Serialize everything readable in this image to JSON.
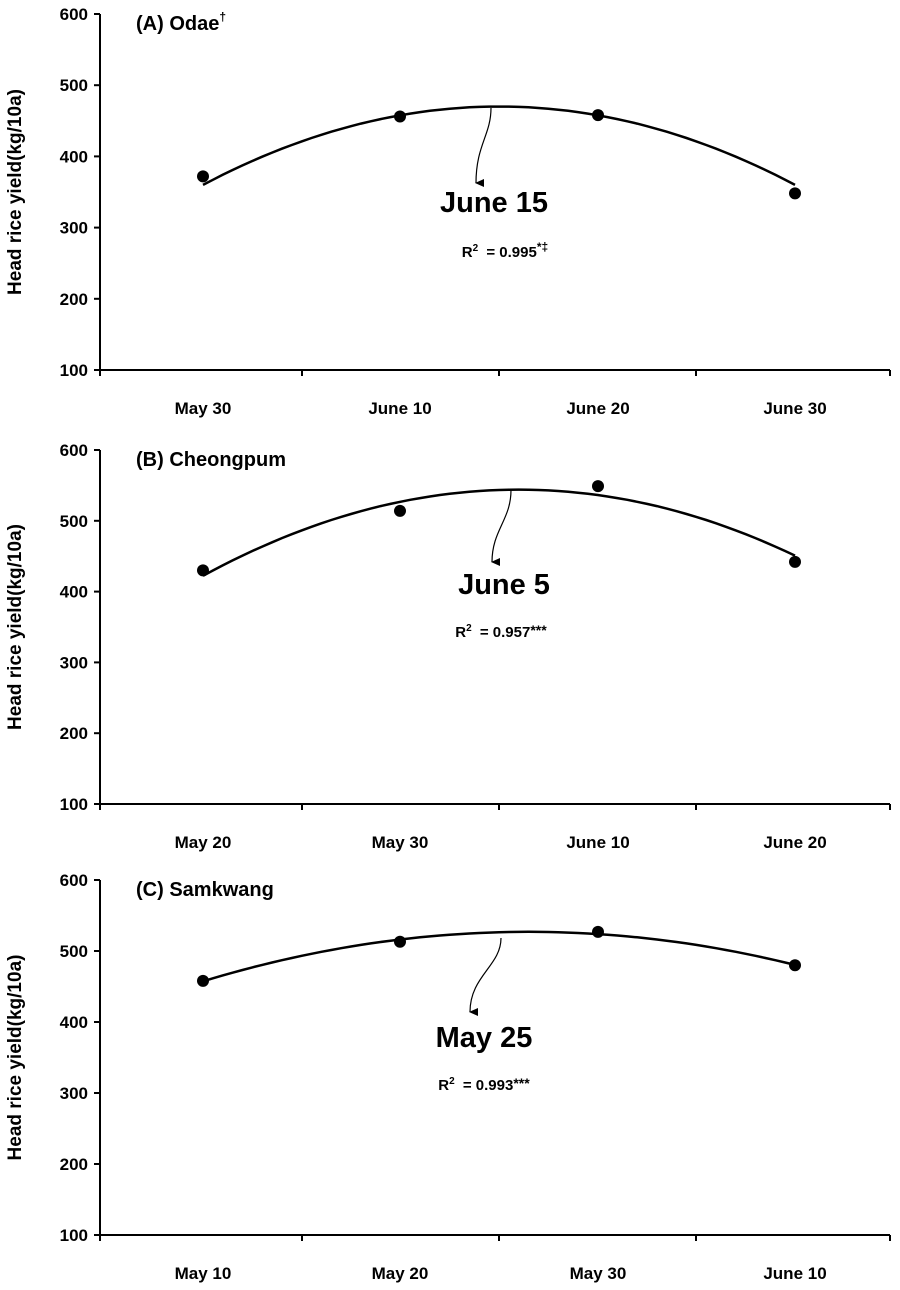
{
  "chart_data": [
    {
      "type": "scatter",
      "title": "(A) Odae",
      "title_mark": "†",
      "ylabel": "Head rice yield(kg/10a)",
      "ylim": [
        100,
        600
      ],
      "yticks": [
        "100",
        "200",
        "300",
        "400",
        "500",
        "600"
      ],
      "categories": [
        "May 30",
        "June 10",
        "June 20",
        "June 30"
      ],
      "series": [
        {
          "values": [
            372,
            456,
            458,
            348
          ]
        }
      ],
      "fit": {
        "type": "quadratic",
        "peak_x": 1.5,
        "peak_y": 470
      },
      "optimum_label": "June 15",
      "r2_text": "= 0.995",
      "r2_sig": "*‡",
      "grid": false
    },
    {
      "type": "scatter",
      "title": "(B) Cheongpum",
      "title_mark": "",
      "ylabel": "Head rice yield(kg/10a)",
      "ylim": [
        100,
        600
      ],
      "yticks": [
        "100",
        "200",
        "300",
        "400",
        "500",
        "600"
      ],
      "categories": [
        "May 20",
        "May 30",
        "June 10",
        "June 20"
      ],
      "series": [
        {
          "values": [
            430,
            514,
            549,
            442
          ]
        }
      ],
      "fit": {
        "type": "quadratic",
        "peak_x": 1.6,
        "peak_y": 544
      },
      "optimum_label": "June 5",
      "r2_text": "= 0.957",
      "r2_sig": "***",
      "grid": false
    },
    {
      "type": "scatter",
      "title": "(C) Samkwang",
      "title_mark": "",
      "ylabel": "Head rice yield(kg/10a)",
      "ylim": [
        100,
        600
      ],
      "yticks": [
        "100",
        "200",
        "300",
        "400",
        "500",
        "600"
      ],
      "categories": [
        "May 10",
        "May 20",
        "May 30",
        "June 10"
      ],
      "series": [
        {
          "values": [
            458,
            513,
            527,
            480
          ]
        }
      ],
      "fit": {
        "type": "quadratic",
        "peak_x": 1.65,
        "peak_y": 527
      },
      "optimum_label": "May 25",
      "r2_text": "= 0.993",
      "r2_sig": "***",
      "grid": false
    }
  ]
}
